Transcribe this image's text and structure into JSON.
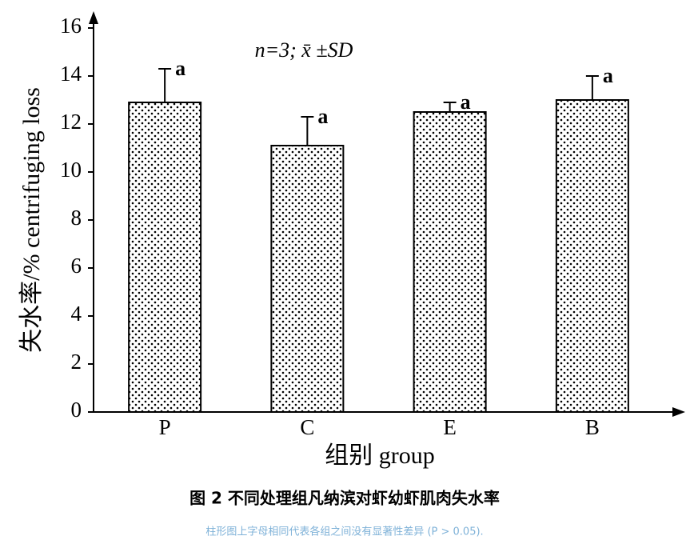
{
  "chart_data": {
    "type": "bar",
    "annotation": "n=3; x̄ ±SD",
    "x_label": "组别 group",
    "y_label": "失水率/% centrifuging loss",
    "categories": [
      "P",
      "C",
      "E",
      "B"
    ],
    "values": [
      12.9,
      11.1,
      12.5,
      13.0
    ],
    "errors": [
      1.4,
      1.2,
      0.4,
      1.0
    ],
    "significance_labels": [
      "a",
      "a",
      "a",
      "a"
    ],
    "ylim": [
      0,
      16
    ],
    "yticks": [
      0,
      2,
      4,
      6,
      8,
      10,
      12,
      14,
      16
    ],
    "color": "#000000"
  },
  "caption": {
    "title": "图 2 不同处理组凡纳滨对虾幼虾肌肉失水率",
    "note": "柱形图上字母相同代表各组之间没有显著性差异 (P > 0.05)."
  }
}
